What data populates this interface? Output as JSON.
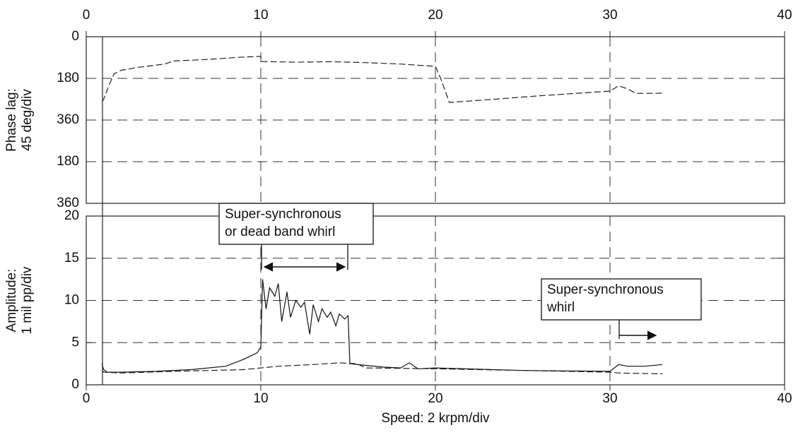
{
  "chart_data": [
    {
      "type": "line",
      "ylabel": [
        "Phase lag:",
        "45 deg/div"
      ],
      "xlim": [
        0,
        40
      ],
      "xticks": [
        0,
        10,
        20,
        30,
        40
      ],
      "ylim": [
        0,
        720
      ],
      "yticks": [
        0,
        180,
        360,
        {
          "value": 540,
          "label": "180"
        },
        {
          "value": 720,
          "label": "360"
        }
      ],
      "grid": true,
      "series": [
        {
          "color": "#222",
          "dash": true,
          "x": [
            0.9,
            1.0,
            1.3,
            1.6,
            2.0,
            3.0,
            4.5,
            5.0,
            7.0,
            9.0,
            10.0,
            10.05,
            12.0,
            14.0,
            16.0,
            18.0,
            20.0,
            20.3,
            20.8,
            23.0,
            26.0,
            28.0,
            30.0,
            30.5,
            31.0,
            31.5,
            33.0
          ],
          "values": [
            280,
            270,
            210,
            160,
            145,
            132,
            118,
            105,
            98,
            88,
            85,
            107,
            110,
            108,
            112,
            118,
            128,
            180,
            284,
            272,
            255,
            245,
            235,
            212,
            225,
            245,
            244
          ]
        }
      ]
    },
    {
      "type": "line",
      "ylabel": [
        "Amplitude:",
        "1 mil pp/div"
      ],
      "xlabel": "Speed: 2 krpm/div",
      "xlim": [
        0,
        40
      ],
      "xticks": [
        0,
        10,
        20,
        30,
        40
      ],
      "ylim": [
        0,
        20
      ],
      "yticks": [
        0,
        5,
        10,
        15,
        20
      ],
      "grid": true,
      "series": [
        {
          "color": "#111",
          "dash": false,
          "x": [
            0.9,
            1.0,
            1.2,
            2.0,
            4.0,
            6.0,
            8.0,
            9.0,
            9.5,
            9.8,
            10.0,
            10.1,
            10.3,
            10.5,
            10.8,
            11.0,
            11.2,
            11.5,
            11.7,
            12.0,
            12.3,
            12.5,
            12.8,
            13.0,
            13.3,
            13.5,
            13.8,
            14.0,
            14.3,
            14.5,
            14.8,
            15.0,
            15.1,
            16.0,
            17.0,
            18.0,
            18.5,
            19.0,
            20.0,
            25.0,
            30.0,
            30.5,
            31.0,
            32.0,
            33.0
          ],
          "values": [
            2.5,
            1.8,
            1.5,
            1.5,
            1.6,
            1.8,
            2.2,
            3.0,
            3.5,
            3.8,
            4.5,
            12.5,
            9.0,
            11.5,
            10.5,
            12.0,
            7.5,
            11.0,
            8.0,
            10.0,
            9.2,
            9.8,
            6.0,
            9.5,
            7.5,
            9.0,
            8.0,
            8.6,
            7.0,
            8.4,
            7.8,
            8.2,
            2.5,
            2.3,
            2.1,
            2.0,
            2.6,
            1.9,
            2.0,
            1.7,
            1.6,
            2.4,
            2.2,
            2.2,
            2.4
          ]
        },
        {
          "color": "#222",
          "dash": true,
          "x": [
            0.9,
            1.0,
            2.0,
            5.0,
            9.0,
            10.0,
            11.0,
            13.0,
            14.5,
            15.5,
            16.0,
            20.0,
            25.0,
            30.0,
            30.5,
            33.0
          ],
          "values": [
            1.7,
            1.5,
            1.4,
            1.6,
            1.8,
            2.0,
            2.2,
            2.4,
            2.6,
            2.5,
            2.0,
            1.9,
            1.7,
            1.5,
            1.4,
            1.3
          ]
        }
      ],
      "annotations": [
        {
          "text": [
            "Super-synchronous",
            "or dead band whirl"
          ]
        },
        {
          "text": [
            "Super-synchronous",
            "whirl"
          ]
        }
      ]
    }
  ]
}
